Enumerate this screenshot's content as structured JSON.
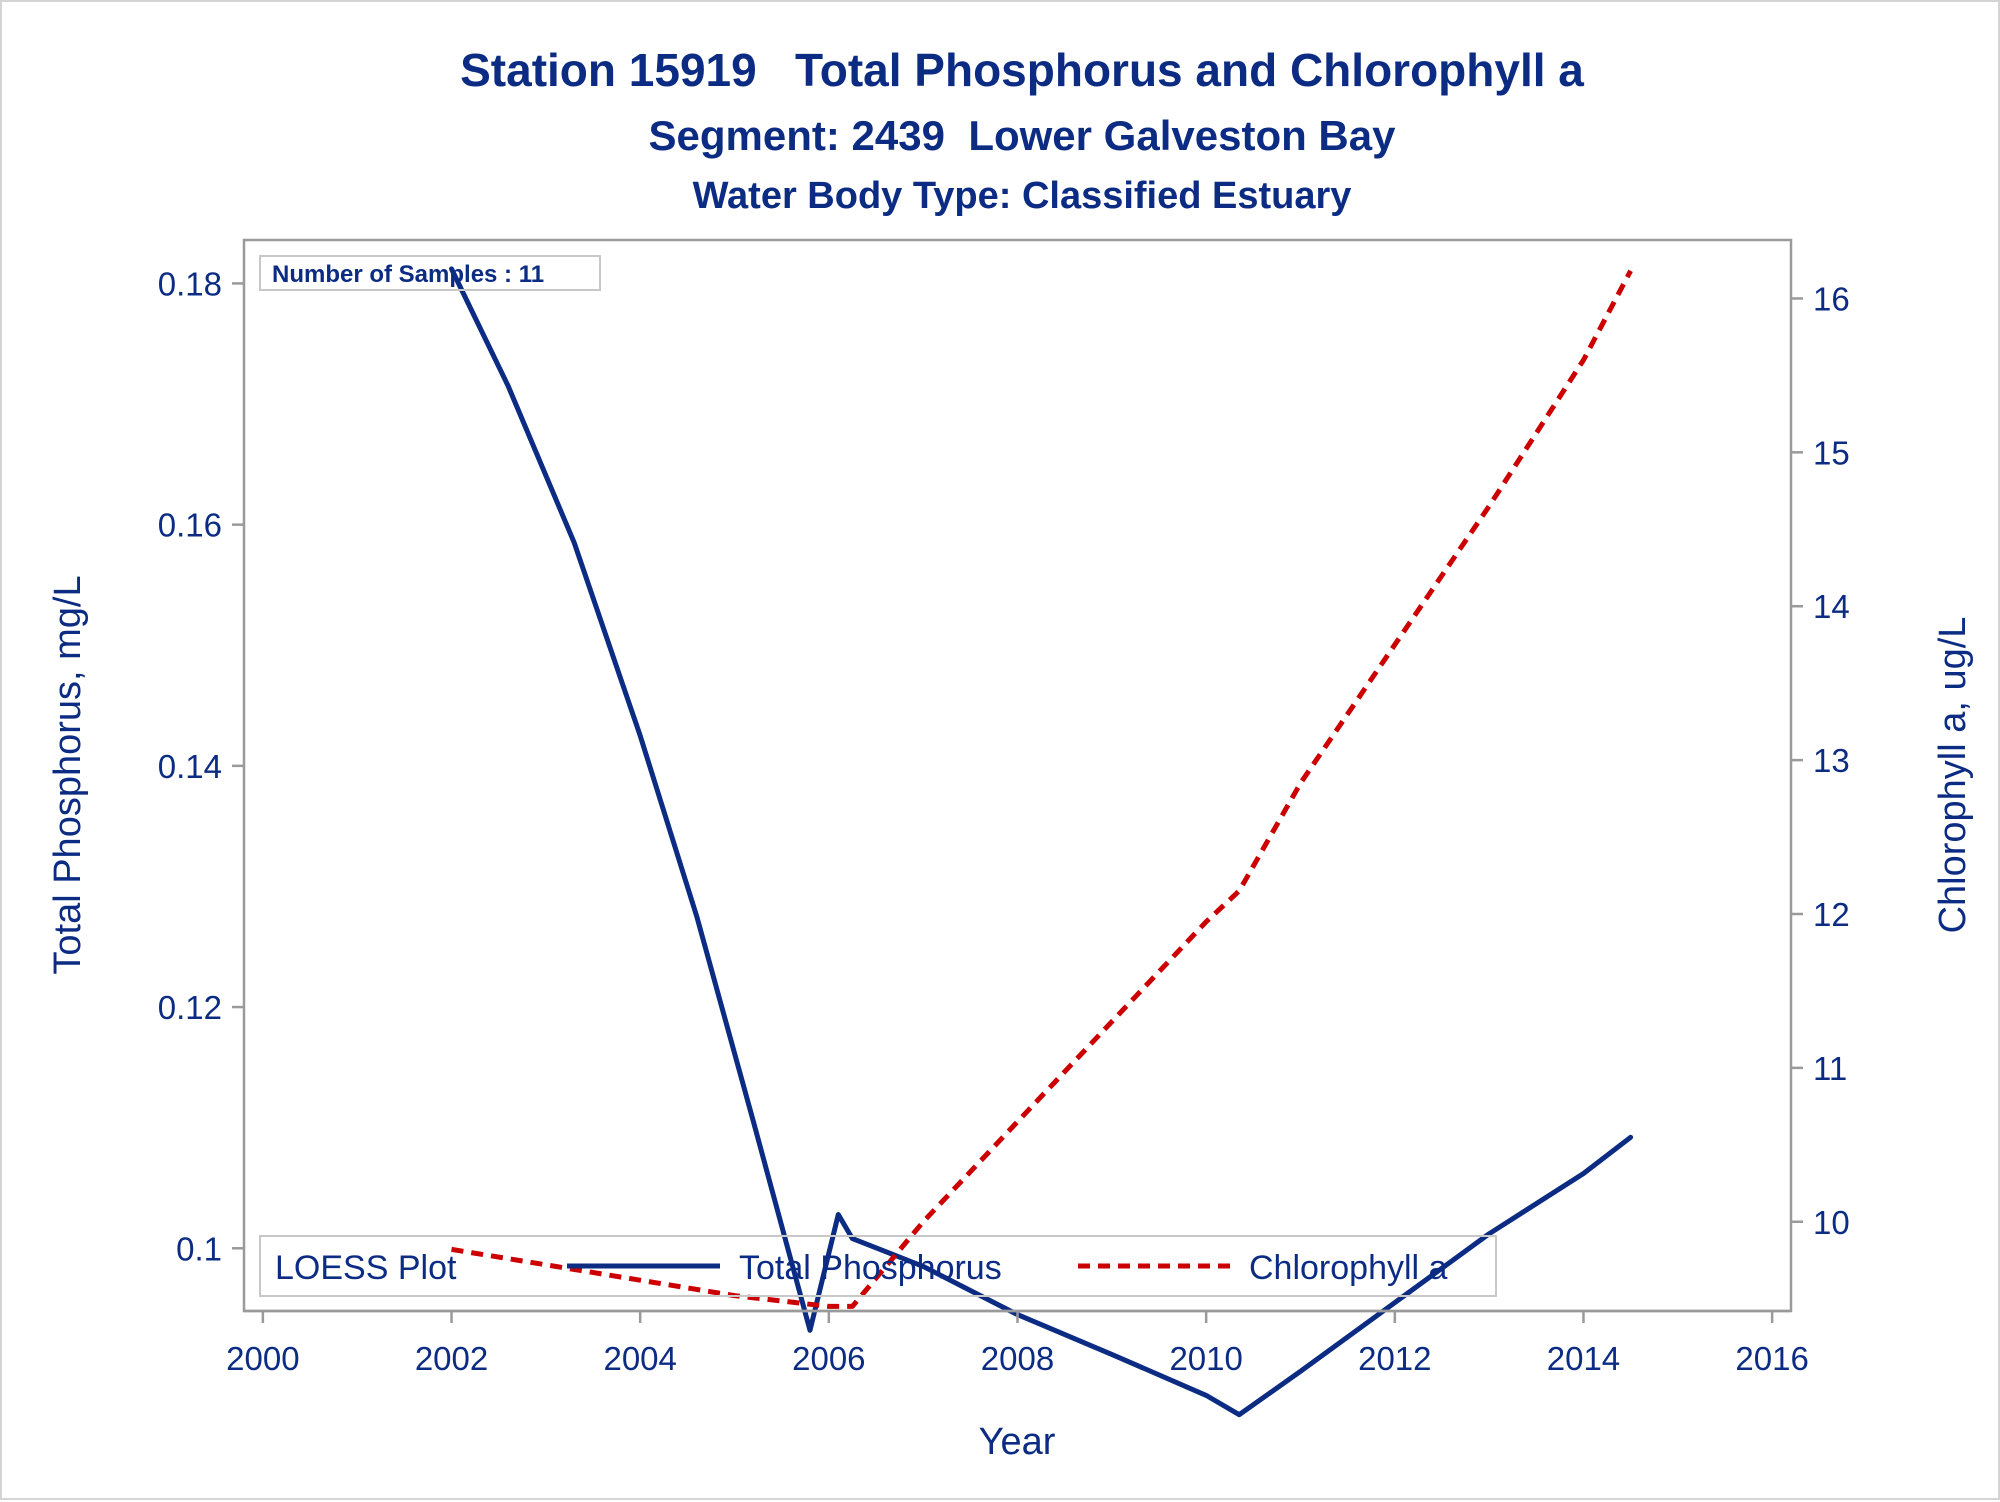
{
  "chart_data": {
    "type": "line",
    "title": "Station 15919   Total Phosphorus and Chlorophyll a",
    "subtitle": "Segment: 2439  Lower Galveston Bay",
    "subtitle2": "Water Body Type: Classified Estuary",
    "xlabel": "Year",
    "ylabel": "Total Phosphorus, mg/L",
    "y2label": "Chlorophyll a, ug/L",
    "inset_text": "Number of Samples : 11",
    "legend": {
      "title": "LOESS Plot",
      "placement": "bottom-left inside plot",
      "entries": [
        "Total Phosphorus",
        "Chlorophyll a"
      ]
    },
    "xlim": [
      1999.8,
      2016.2
    ],
    "ylim": [
      0.0948,
      0.1836
    ],
    "y2lim": [
      9.42,
      16.38
    ],
    "x_ticks": [
      2000,
      2002,
      2004,
      2006,
      2008,
      2010,
      2012,
      2014,
      2016
    ],
    "x_tick_labels": [
      "2000",
      "2002",
      "2004",
      "2006",
      "2008",
      "2010",
      "2012",
      "2014",
      "2016"
    ],
    "y_ticks": [
      0.1,
      0.12,
      0.14,
      0.16,
      0.18
    ],
    "y_tick_labels": [
      "0.1",
      "0.12",
      "0.14",
      "0.16",
      "0.18"
    ],
    "y2_ticks": [
      10,
      11,
      12,
      13,
      14,
      15,
      16
    ],
    "y2_tick_labels": [
      "10",
      "11",
      "12",
      "13",
      "14",
      "15",
      "16"
    ],
    "grid": false,
    "series": [
      {
        "name": "Total Phosphorus",
        "axis": "left",
        "color": "#0c2c84",
        "style": "solid",
        "x": [
          2002.0,
          2002.6,
          2003.3,
          2004.0,
          2004.6,
          2005.2,
          2005.8,
          2006.1,
          2006.25,
          2007.0,
          2008.0,
          2009.0,
          2010.0,
          2010.35,
          2011.0,
          2012.0,
          2013.0,
          2014.0,
          2014.5
        ],
        "y": [
          0.1812,
          0.1715,
          0.1585,
          0.1425,
          0.1275,
          0.1105,
          0.0932,
          0.1028,
          0.1008,
          0.0985,
          0.0945,
          0.0912,
          0.0878,
          0.0862,
          0.0898,
          0.0955,
          0.1012,
          0.1062,
          0.1092
        ]
      },
      {
        "name": "Chlorophyll a",
        "axis": "right",
        "color": "#cc0000",
        "style": "dashed",
        "x": [
          2002.0,
          2003.0,
          2004.0,
          2005.0,
          2006.0,
          2006.25,
          2007.0,
          2008.0,
          2009.0,
          2010.0,
          2010.35,
          2011.0,
          2012.0,
          2013.0,
          2014.0,
          2014.5
        ],
        "y": [
          9.82,
          9.72,
          9.62,
          9.52,
          9.45,
          9.45,
          10.0,
          10.65,
          11.3,
          11.95,
          12.15,
          12.85,
          13.75,
          14.65,
          15.6,
          16.18
        ]
      }
    ]
  }
}
